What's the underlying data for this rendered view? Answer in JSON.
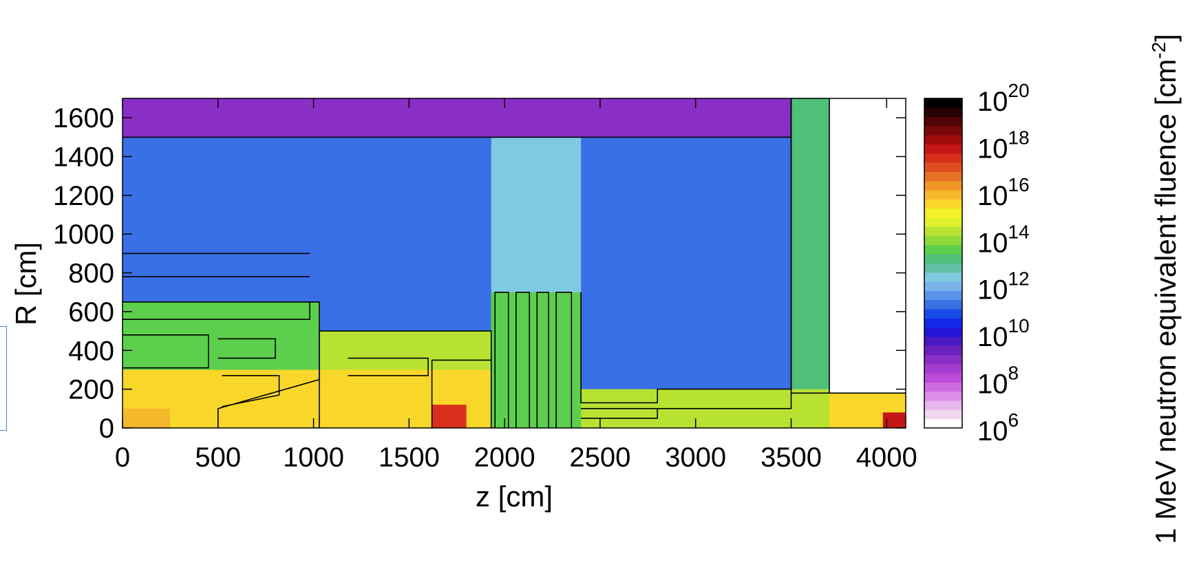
{
  "chart_data": {
    "type": "heatmap",
    "xlabel": "z [cm]",
    "ylabel": "R [cm]",
    "colorbar_label": "1 MeV neutron equivalent fluence [cm",
    "colorbar_label_exp": "-2",
    "colorbar_label_close": "]",
    "xlim": [
      0,
      4100
    ],
    "ylim": [
      0,
      1700
    ],
    "x_ticks": [
      0,
      500,
      1000,
      1500,
      2000,
      2500,
      3000,
      3500,
      4000
    ],
    "y_ticks": [
      0,
      200,
      400,
      600,
      800,
      1000,
      1200,
      1400,
      1600
    ],
    "colorbar": {
      "scale": "log",
      "range": [
        1000000.0,
        1e+20
      ],
      "tick_base": "10",
      "tick_exponents": [
        "6",
        "8",
        "10",
        "12",
        "14",
        "16",
        "18",
        "20"
      ],
      "colors": [
        "#ffffff",
        "#f2d7f2",
        "#e8b4ec",
        "#dd8fe6",
        "#cf6ae0",
        "#bd4bd8",
        "#a43ccf",
        "#8a2fc6",
        "#6a22c0",
        "#4a1ac4",
        "#2315d6",
        "#1028e8",
        "#1a4ce8",
        "#3a70e6",
        "#5a92e8",
        "#7ab2ea",
        "#7fcae0",
        "#62c0a6",
        "#50bf78",
        "#5ccf4c",
        "#8ed93c",
        "#b8e232",
        "#dff02c",
        "#f4f02a",
        "#f8d72a",
        "#f4b82a",
        "#f09628",
        "#e87024",
        "#e04e20",
        "#d8301c",
        "#c41616",
        "#a00c0c",
        "#7a0808",
        "#500404",
        "#280202",
        "#000000"
      ]
    },
    "regions_description": "cavern neutron background ~1e8-1e10 at R 1500-1700 for z<3500; ~1e11 in cavern bulk; ~1e14-1e16 in inner detector and calorimeter; hot spots ~1e18 near z 1700 and z 4050 at small R",
    "field_regions": [
      {
        "z": [
          0,
          3500
        ],
        "r": [
          1500,
          1700
        ],
        "log_fluence": 9.0
      },
      {
        "z": [
          0,
          3500
        ],
        "r": [
          0,
          1500
        ],
        "log_fluence": 11.2
      },
      {
        "z": [
          1930,
          2400
        ],
        "r": [
          0,
          1500
        ],
        "log_fluence": 12.3
      },
      {
        "z": [
          3500,
          3700
        ],
        "r": [
          0,
          1700
        ],
        "log_fluence": 13.0
      },
      {
        "z": [
          0,
          1030
        ],
        "r": [
          0,
          650
        ],
        "log_fluence": 13.5
      },
      {
        "z": [
          1030,
          1930
        ],
        "r": [
          0,
          500
        ],
        "log_fluence": 14.5
      },
      {
        "z": [
          0,
          1930
        ],
        "r": [
          0,
          300
        ],
        "log_fluence": 15.4
      },
      {
        "z": [
          1930,
          2400
        ],
        "r": [
          0,
          700
        ],
        "log_fluence": 13.6
      },
      {
        "z": [
          2400,
          3700
        ],
        "r": [
          0,
          200
        ],
        "log_fluence": 14.3
      },
      {
        "z": [
          3700,
          4100
        ],
        "r": [
          0,
          180
        ],
        "log_fluence": 15.6
      },
      {
        "z": [
          1620,
          1800
        ],
        "r": [
          0,
          120
        ],
        "log_fluence": 17.6
      },
      {
        "z": [
          3980,
          4100
        ],
        "r": [
          0,
          80
        ],
        "log_fluence": 17.8
      },
      {
        "z": [
          0,
          250
        ],
        "r": [
          0,
          100
        ],
        "log_fluence": 15.8
      }
    ],
    "outlines": [
      [
        [
          0,
          1500
        ],
        [
          3500,
          1500
        ]
      ],
      [
        [
          3500,
          1700
        ],
        [
          3500,
          200
        ],
        [
          2800,
          200
        ],
        [
          2800,
          130
        ],
        [
          2400,
          130
        ],
        [
          2400,
          700
        ]
      ],
      [
        [
          1030,
          0
        ],
        [
          1030,
          500
        ],
        [
          1930,
          500
        ],
        [
          1930,
          0
        ]
      ],
      [
        [
          0,
          650
        ],
        [
          1030,
          650
        ],
        [
          1030,
          250
        ],
        [
          500,
          100
        ],
        [
          500,
          0
        ]
      ],
      [
        [
          0,
          900
        ],
        [
          980,
          900
        ]
      ],
      [
        [
          0,
          780
        ],
        [
          980,
          780
        ]
      ],
      [
        [
          0,
          560
        ],
        [
          980,
          560
        ],
        [
          980,
          650
        ]
      ],
      [
        [
          0,
          480
        ],
        [
          450,
          480
        ],
        [
          450,
          310
        ],
        [
          0,
          310
        ]
      ],
      [
        [
          500,
          460
        ],
        [
          800,
          460
        ],
        [
          800,
          360
        ],
        [
          500,
          360
        ]
      ],
      [
        [
          520,
          270
        ],
        [
          820,
          270
        ],
        [
          820,
          170
        ],
        [
          520,
          110
        ]
      ],
      [
        [
          1180,
          360
        ],
        [
          1600,
          360
        ],
        [
          1600,
          270
        ],
        [
          1180,
          270
        ]
      ],
      [
        [
          1620,
          350
        ],
        [
          1930,
          350
        ]
      ],
      [
        [
          1620,
          0
        ],
        [
          1620,
          350
        ]
      ],
      [
        [
          1950,
          0
        ],
        [
          1950,
          700
        ],
        [
          2020,
          700
        ],
        [
          2020,
          0
        ]
      ],
      [
        [
          2060,
          0
        ],
        [
          2060,
          700
        ],
        [
          2130,
          700
        ],
        [
          2130,
          0
        ]
      ],
      [
        [
          2170,
          0
        ],
        [
          2170,
          700
        ],
        [
          2230,
          700
        ],
        [
          2230,
          0
        ]
      ],
      [
        [
          2270,
          0
        ],
        [
          2270,
          700
        ],
        [
          2350,
          700
        ],
        [
          2350,
          0
        ]
      ],
      [
        [
          2400,
          50
        ],
        [
          2800,
          50
        ],
        [
          2800,
          100
        ],
        [
          3500,
          100
        ],
        [
          3500,
          1700
        ],
        [
          3700,
          1700
        ],
        [
          3700,
          180
        ],
        [
          4100,
          180
        ]
      ],
      [
        [
          2400,
          100
        ],
        [
          2800,
          100
        ]
      ],
      [
        [
          3500,
          180
        ],
        [
          3700,
          180
        ]
      ]
    ],
    "grid": false
  }
}
